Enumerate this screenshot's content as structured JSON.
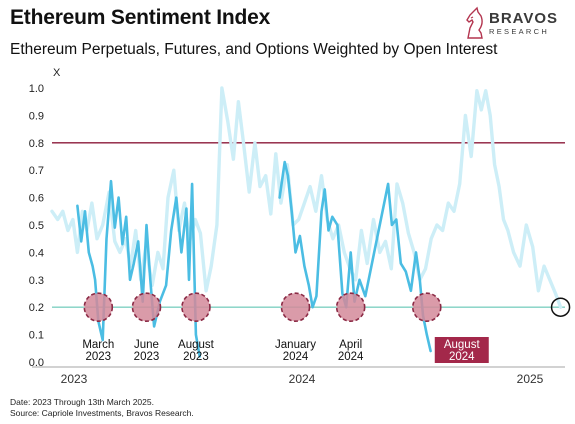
{
  "header": {
    "title": "Ethereum Sentiment Index",
    "subtitle": "Ethereum Perpetuals, Futures, and Options Weighted by Open Interest"
  },
  "brand": {
    "name": "BRAVOS",
    "tagline": "RESEARCH"
  },
  "footer": {
    "date_note": "Date: 2023 Through 13th March 2025.",
    "source_note": "Source: Capriole Investments, Bravos Research."
  },
  "chart_data": {
    "type": "line",
    "title": "Ethereum Sentiment Index",
    "subtitle": "Ethereum Perpetuals, Futures, and Options Weighted by Open Interest",
    "ylabel": "X",
    "xlabel": "",
    "ylim": [
      0,
      1.0
    ],
    "yticks": [
      0.0,
      0.1,
      0.2,
      0.3,
      0.4,
      0.5,
      0.6,
      0.7,
      0.8,
      0.9,
      1.0
    ],
    "xticks": [
      "2023",
      "2024",
      "2025"
    ],
    "grid": false,
    "reference_lines": [
      {
        "y": 0.8,
        "color": "#8b1a3a"
      },
      {
        "y": 0.2,
        "color": "#7fd1c2"
      }
    ],
    "series": [
      {
        "color": "#cdeef7",
        "x": [
          "2023-01-01",
          "2023-01-10",
          "2023-01-18",
          "2023-01-26",
          "2023-02-03",
          "2023-02-10",
          "2023-02-18",
          "2023-02-25",
          "2023-03-05",
          "2023-03-13",
          "2023-03-22",
          "2023-04-01",
          "2023-04-10",
          "2023-04-18",
          "2023-04-27",
          "2023-05-05",
          "2023-05-13",
          "2023-05-21",
          "2023-05-29",
          "2023-06-08",
          "2023-06-17",
          "2023-06-25",
          "2023-07-03",
          "2023-07-12",
          "2023-07-20",
          "2023-07-29",
          "2023-08-06",
          "2023-08-15",
          "2023-08-23",
          "2023-09-01",
          "2023-09-09",
          "2023-09-18",
          "2023-09-26",
          "2023-10-05",
          "2023-10-14",
          "2023-10-22",
          "2023-10-30",
          "2023-11-08",
          "2023-11-17",
          "2023-11-25",
          "2023-12-04",
          "2023-12-12",
          "2023-12-20",
          "2023-12-28",
          "2024-01-07",
          "2024-01-16",
          "2024-01-25",
          "2024-02-03",
          "2024-02-12",
          "2024-02-21",
          "2024-03-01",
          "2024-03-10",
          "2024-03-19",
          "2024-03-28",
          "2024-04-06",
          "2024-04-15",
          "2024-04-24",
          "2024-05-03",
          "2024-05-12",
          "2024-05-22",
          "2024-06-01",
          "2024-06-10",
          "2024-06-19",
          "2024-06-28",
          "2024-07-07",
          "2024-07-16",
          "2024-07-25",
          "2024-08-03",
          "2024-08-12",
          "2024-08-21",
          "2024-08-30",
          "2024-09-08",
          "2024-09-17",
          "2024-09-26",
          "2024-10-05",
          "2024-10-14",
          "2024-10-23",
          "2024-11-01",
          "2024-11-08",
          "2024-11-15",
          "2024-11-22",
          "2024-11-29",
          "2024-12-06",
          "2024-12-13",
          "2024-12-20",
          "2024-12-29",
          "2025-01-08",
          "2025-01-18",
          "2025-01-28",
          "2025-02-06",
          "2025-02-15",
          "2025-02-24",
          "2025-03-05",
          "2025-03-13"
        ],
        "values": [
          0.55,
          0.52,
          0.55,
          0.48,
          0.52,
          0.4,
          0.55,
          0.48,
          0.58,
          0.45,
          0.5,
          0.62,
          0.44,
          0.4,
          0.45,
          0.35,
          0.48,
          0.3,
          0.42,
          0.28,
          0.4,
          0.34,
          0.6,
          0.7,
          0.48,
          0.58,
          0.44,
          0.52,
          0.47,
          0.26,
          0.35,
          0.5,
          1.0,
          0.88,
          0.74,
          0.95,
          0.8,
          0.62,
          0.8,
          0.64,
          0.68,
          0.54,
          0.76,
          0.58,
          0.72,
          0.5,
          0.52,
          0.58,
          0.64,
          0.55,
          0.68,
          0.52,
          0.45,
          0.5,
          0.4,
          0.34,
          0.3,
          0.48,
          0.36,
          0.52,
          0.4,
          0.44,
          0.34,
          0.65,
          0.58,
          0.47,
          0.4,
          0.3,
          0.34,
          0.45,
          0.5,
          0.48,
          0.58,
          0.55,
          0.65,
          0.9,
          0.75,
          0.99,
          0.92,
          0.99,
          0.9,
          0.72,
          0.64,
          0.52,
          0.48,
          0.4,
          0.35,
          0.5,
          0.42,
          0.26,
          0.35,
          0.3,
          0.25,
          0.2
        ]
      },
      {
        "color": "#4bbde3",
        "x": [
          "2023-02-10",
          "2023-02-16",
          "2023-02-22",
          "2023-02-28",
          "2023-03-06",
          "2023-03-10",
          "2023-03-15",
          "2023-03-22",
          "2023-03-28",
          "2023-04-04",
          "2023-04-10",
          "2023-04-16",
          "2023-04-22",
          "2023-04-28",
          "2023-05-04",
          "2023-05-10",
          "2023-05-17",
          "2023-05-24",
          "2023-05-30",
          "2023-06-05",
          "2023-06-11",
          "2023-06-20",
          "2023-06-30",
          "2023-07-08",
          "2023-07-16",
          "2023-07-24",
          "2023-08-01",
          "2023-08-05",
          "2023-08-10",
          "2023-08-16",
          "2023-08-22",
          "2023-12-26",
          "2024-01-03",
          "2024-01-08",
          "2024-01-14",
          "2024-01-20",
          "2024-01-27",
          "2024-02-03",
          "2024-02-10",
          "2024-02-16",
          "2024-02-22",
          "2024-03-01",
          "2024-03-06",
          "2024-03-12",
          "2024-03-18",
          "2024-03-26",
          "2024-04-03",
          "2024-04-09",
          "2024-04-16",
          "2024-04-22",
          "2024-04-30",
          "2024-05-09",
          "2024-06-14",
          "2024-06-20",
          "2024-06-27",
          "2024-07-04",
          "2024-07-12",
          "2024-07-20",
          "2024-07-28",
          "2024-08-03",
          "2024-08-08",
          "2024-08-14",
          "2024-08-20"
        ],
        "values": [
          0.57,
          0.44,
          0.55,
          0.4,
          0.35,
          0.3,
          0.15,
          0.08,
          0.45,
          0.66,
          0.49,
          0.6,
          0.43,
          0.53,
          0.3,
          0.36,
          0.44,
          0.22,
          0.5,
          0.3,
          0.13,
          0.22,
          0.28,
          0.48,
          0.6,
          0.4,
          0.56,
          0.3,
          0.65,
          0.1,
          0.02,
          0.6,
          0.73,
          0.68,
          0.55,
          0.4,
          0.46,
          0.35,
          0.28,
          0.2,
          0.24,
          0.55,
          0.63,
          0.48,
          0.53,
          0.5,
          0.25,
          0.2,
          0.4,
          0.22,
          0.3,
          0.24,
          0.65,
          0.5,
          0.52,
          0.36,
          0.33,
          0.26,
          0.4,
          0.3,
          0.17,
          0.1,
          0.04
        ]
      }
    ],
    "highlights": [
      {
        "x": "2023-03-15",
        "y": 0.2,
        "label_line1": "March",
        "label_line2": "2023"
      },
      {
        "x": "2023-05-30",
        "y": 0.2,
        "label_line1": "June",
        "label_line2": "2023"
      },
      {
        "x": "2023-08-16",
        "y": 0.2,
        "label_line1": "August",
        "label_line2": "2023"
      },
      {
        "x": "2024-01-20",
        "y": 0.2,
        "label_line1": "January",
        "label_line2": "2024"
      },
      {
        "x": "2024-04-16",
        "y": 0.2,
        "label_line1": "April",
        "label_line2": "2024"
      },
      {
        "x": "2024-08-14",
        "y": 0.2,
        "label_line1": "August",
        "label_line2": "2024",
        "emphasis": true
      }
    ],
    "current_marker": {
      "x": "2025-03-13",
      "y": 0.2
    }
  }
}
